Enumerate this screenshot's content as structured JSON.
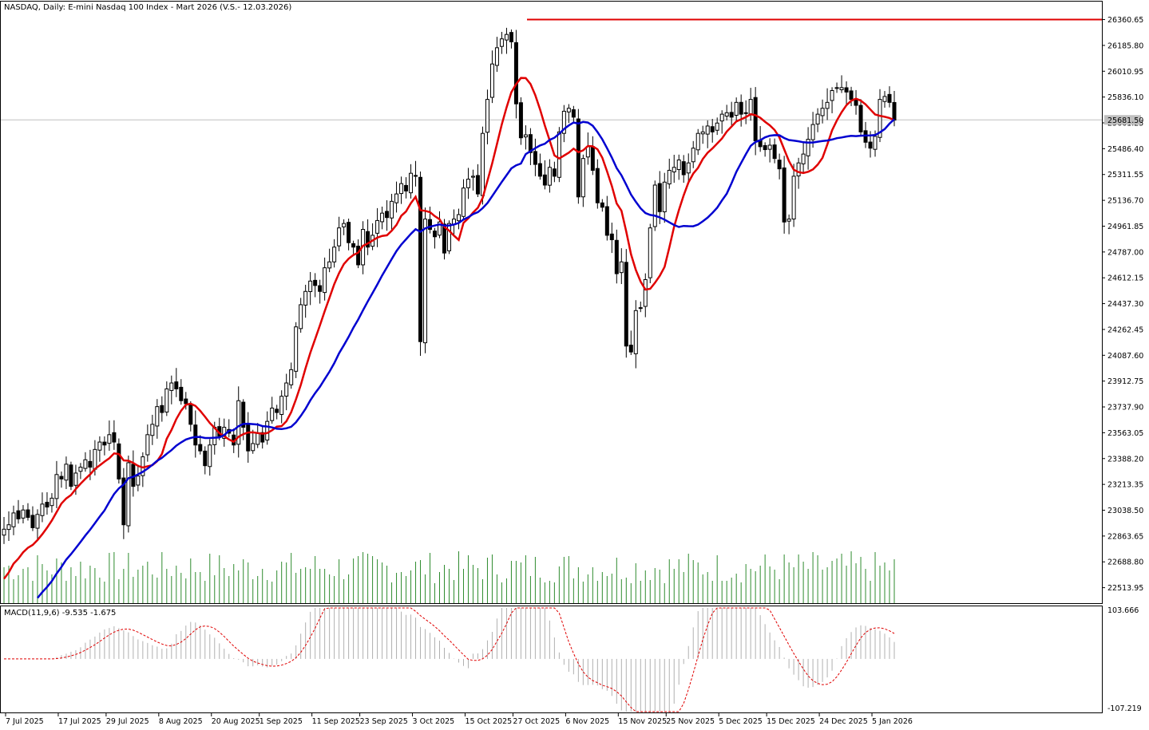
{
  "window": {
    "title": "NASDAQ, Daily:  E-mini Nasdaq 100 Index - Mart 2026 (V.S.- 12.03.2026)",
    "current_price_label": "25681.50",
    "resistance_level": 26360.65
  },
  "macd": {
    "label": "MACD(11,9,6) -9.535 -1.675",
    "axis_top": "103.666",
    "axis_bottom": "-107.219"
  },
  "chart_data": [
    {
      "type": "candlestick",
      "title": "NASDAQ, Daily:  E-mini Nasdaq 100 Index - Mart 2026 (V.S.- 12.03.2026)",
      "ylim": [
        22420,
        26450
      ],
      "y_ticks": [
        "26360.65",
        "26185.80",
        "26010.95",
        "25836.10",
        "25661.25",
        "25486.40",
        "25311.55",
        "25136.70",
        "24961.85",
        "24787.00",
        "24612.15",
        "24437.30",
        "24262.45",
        "24087.60",
        "23912.75",
        "23737.90",
        "23563.05",
        "23388.20",
        "23213.35",
        "23038.50",
        "22863.65",
        "22688.80",
        "22513.95"
      ],
      "x_tick_labels": [
        "7 Jul 2025",
        "17 Jul 2025",
        "29 Jul 2025",
        "8 Aug 2025",
        "20 Aug 2025",
        "1 Sep 2025",
        "11 Sep 2025",
        "23 Sep 2025",
        "3 Oct 2025",
        "15 Oct 2025",
        "27 Oct 2025",
        "6 Nov 2025",
        "15 Nov 2025",
        "25 Nov 2025",
        "5 Dec 2025",
        "15 Dec 2025",
        "24 Dec 2025",
        "5 Jan 2026"
      ],
      "grid": false,
      "closes": [
        22910,
        22940,
        23020,
        22980,
        23040,
        22990,
        22920,
        23010,
        23080,
        23060,
        23120,
        23280,
        23250,
        23350,
        23200,
        23290,
        23330,
        23380,
        23330,
        23450,
        23500,
        23480,
        23550,
        23500,
        23250,
        22940,
        23360,
        23200,
        23270,
        23400,
        23550,
        23620,
        23740,
        23700,
        23860,
        23900,
        23860,
        23780,
        23760,
        23620,
        23480,
        23440,
        23340,
        23480,
        23600,
        23540,
        23600,
        23560,
        23480,
        23780,
        23600,
        23440,
        23490,
        23560,
        23500,
        23640,
        23730,
        23700,
        23810,
        23900,
        23990,
        24280,
        24430,
        24520,
        24590,
        24560,
        24520,
        24680,
        24720,
        24820,
        24950,
        24980,
        24850,
        24820,
        24700,
        24940,
        24820,
        24900,
        25000,
        25050,
        25020,
        25130,
        25180,
        25250,
        25200,
        25320,
        25300,
        24180,
        25010,
        24940,
        24890,
        24990,
        24780,
        24980,
        25010,
        25040,
        25220,
        25280,
        25300,
        25180,
        25590,
        25820,
        26060,
        26170,
        26230,
        26260,
        26210,
        25790,
        25560,
        25580,
        25460,
        25380,
        25300,
        25240,
        25360,
        25300,
        25600,
        25740,
        25760,
        25700,
        25160,
        25420,
        25500,
        25340,
        25120,
        25090,
        24900,
        24870,
        24640,
        24720,
        24150,
        24110,
        24390,
        24410,
        24600,
        24950,
        25240,
        25060,
        25260,
        25340,
        25360,
        25410,
        25310,
        25390,
        25490,
        25590,
        25600,
        25640,
        25600,
        25660,
        25720,
        25730,
        25700,
        25800,
        25720,
        25730,
        25820,
        25540,
        25500,
        25480,
        25510,
        25420,
        25350,
        24990,
        25010,
        25300,
        25390,
        25450,
        25550,
        25650,
        25720,
        25760,
        25800,
        25880,
        25900,
        25900,
        25870,
        25820,
        25780,
        25600,
        25530,
        25490,
        25570,
        25820,
        25840,
        25800,
        25680
      ]
    },
    {
      "type": "bar",
      "title": "",
      "ylim": [
        -107.219,
        103.666
      ]
    }
  ]
}
